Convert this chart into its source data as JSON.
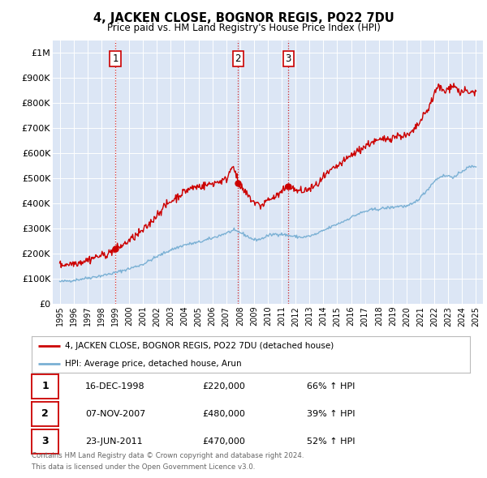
{
  "title": "4, JACKEN CLOSE, BOGNOR REGIS, PO22 7DU",
  "subtitle": "Price paid vs. HM Land Registry's House Price Index (HPI)",
  "background_color": "#dce6f5",
  "plot_bg_color": "#dce6f5",
  "legend_entries": [
    "4, JACKEN CLOSE, BOGNOR REGIS, PO22 7DU (detached house)",
    "HPI: Average price, detached house, Arun"
  ],
  "sale_markers": [
    {
      "num": 1,
      "date": "16-DEC-1998",
      "price": 220000,
      "price_str": "£220,000",
      "hpi_pct": "66% ↑ HPI",
      "x_year": 1999.0
    },
    {
      "num": 2,
      "date": "07-NOV-2007",
      "price": 480000,
      "price_str": "£480,000",
      "hpi_pct": "39% ↑ HPI",
      "x_year": 2007.85
    },
    {
      "num": 3,
      "date": "23-JUN-2011",
      "price": 470000,
      "price_str": "£470,000",
      "hpi_pct": "52% ↑ HPI",
      "x_year": 2011.48
    }
  ],
  "footer_line1": "Contains HM Land Registry data © Crown copyright and database right 2024.",
  "footer_line2": "This data is licensed under the Open Government Licence v3.0.",
  "red_color": "#cc0000",
  "blue_color": "#7ab0d4",
  "dashed_color": "#cc0000",
  "ylim": [
    0,
    1050000
  ],
  "xlim": [
    1994.5,
    2025.5
  ],
  "hpi_anchors": [
    [
      1995,
      88000
    ],
    [
      1996,
      94000
    ],
    [
      1997,
      103000
    ],
    [
      1998,
      112000
    ],
    [
      1999,
      124000
    ],
    [
      2000,
      140000
    ],
    [
      2001,
      158000
    ],
    [
      2002,
      188000
    ],
    [
      2003,
      215000
    ],
    [
      2004,
      235000
    ],
    [
      2005,
      245000
    ],
    [
      2006,
      262000
    ],
    [
      2007,
      282000
    ],
    [
      2007.5,
      292000
    ],
    [
      2008.0,
      285000
    ],
    [
      2008.5,
      270000
    ],
    [
      2009.0,
      255000
    ],
    [
      2009.5,
      258000
    ],
    [
      2010.0,
      272000
    ],
    [
      2010.5,
      278000
    ],
    [
      2011.0,
      278000
    ],
    [
      2011.5,
      272000
    ],
    [
      2012.0,
      268000
    ],
    [
      2012.5,
      265000
    ],
    [
      2013.0,
      270000
    ],
    [
      2013.5,
      278000
    ],
    [
      2014.0,
      292000
    ],
    [
      2014.5,
      305000
    ],
    [
      2015.0,
      318000
    ],
    [
      2015.5,
      330000
    ],
    [
      2016.0,
      345000
    ],
    [
      2016.5,
      358000
    ],
    [
      2017.0,
      368000
    ],
    [
      2017.5,
      375000
    ],
    [
      2018.0,
      378000
    ],
    [
      2018.5,
      382000
    ],
    [
      2019.0,
      385000
    ],
    [
      2019.5,
      390000
    ],
    [
      2020.0,
      388000
    ],
    [
      2020.5,
      400000
    ],
    [
      2021.0,
      425000
    ],
    [
      2021.5,
      455000
    ],
    [
      2022.0,
      490000
    ],
    [
      2022.5,
      510000
    ],
    [
      2023.0,
      510000
    ],
    [
      2023.5,
      505000
    ],
    [
      2024.0,
      530000
    ],
    [
      2024.5,
      545000
    ],
    [
      2025.0,
      550000
    ]
  ],
  "red_anchors": [
    [
      1995.0,
      155000
    ],
    [
      1995.5,
      158000
    ],
    [
      1996.0,
      162000
    ],
    [
      1996.5,
      167000
    ],
    [
      1997.0,
      175000
    ],
    [
      1997.5,
      185000
    ],
    [
      1998.0,
      192000
    ],
    [
      1998.5,
      200000
    ],
    [
      1999.0,
      220000
    ],
    [
      1999.5,
      232000
    ],
    [
      2000.0,
      252000
    ],
    [
      2000.5,
      272000
    ],
    [
      2001.0,
      292000
    ],
    [
      2001.5,
      320000
    ],
    [
      2002.0,
      355000
    ],
    [
      2002.5,
      385000
    ],
    [
      2003.0,
      408000
    ],
    [
      2003.5,
      428000
    ],
    [
      2004.0,
      448000
    ],
    [
      2004.5,
      462000
    ],
    [
      2005.0,
      468000
    ],
    [
      2005.5,
      472000
    ],
    [
      2006.0,
      480000
    ],
    [
      2006.5,
      488000
    ],
    [
      2007.0,
      495000
    ],
    [
      2007.5,
      560000
    ],
    [
      2007.85,
      480000
    ],
    [
      2008.0,
      465000
    ],
    [
      2008.5,
      435000
    ],
    [
      2009.0,
      405000
    ],
    [
      2009.5,
      390000
    ],
    [
      2010.0,
      415000
    ],
    [
      2010.5,
      425000
    ],
    [
      2011.0,
      445000
    ],
    [
      2011.48,
      470000
    ],
    [
      2012.0,
      452000
    ],
    [
      2012.5,
      448000
    ],
    [
      2013.0,
      458000
    ],
    [
      2013.5,
      472000
    ],
    [
      2014.0,
      502000
    ],
    [
      2014.5,
      528000
    ],
    [
      2015.0,
      548000
    ],
    [
      2015.5,
      568000
    ],
    [
      2016.0,
      592000
    ],
    [
      2016.5,
      610000
    ],
    [
      2017.0,
      628000
    ],
    [
      2017.5,
      645000
    ],
    [
      2018.0,
      650000
    ],
    [
      2018.5,
      658000
    ],
    [
      2019.0,
      665000
    ],
    [
      2019.5,
      672000
    ],
    [
      2020.0,
      668000
    ],
    [
      2020.5,
      688000
    ],
    [
      2021.0,
      728000
    ],
    [
      2021.5,
      772000
    ],
    [
      2022.0,
      835000
    ],
    [
      2022.3,
      870000
    ],
    [
      2022.5,
      855000
    ],
    [
      2022.8,
      845000
    ],
    [
      2023.0,
      858000
    ],
    [
      2023.3,
      875000
    ],
    [
      2023.6,
      860000
    ],
    [
      2023.9,
      840000
    ],
    [
      2024.2,
      850000
    ],
    [
      2024.5,
      840000
    ],
    [
      2024.8,
      845000
    ],
    [
      2025.0,
      845000
    ]
  ]
}
